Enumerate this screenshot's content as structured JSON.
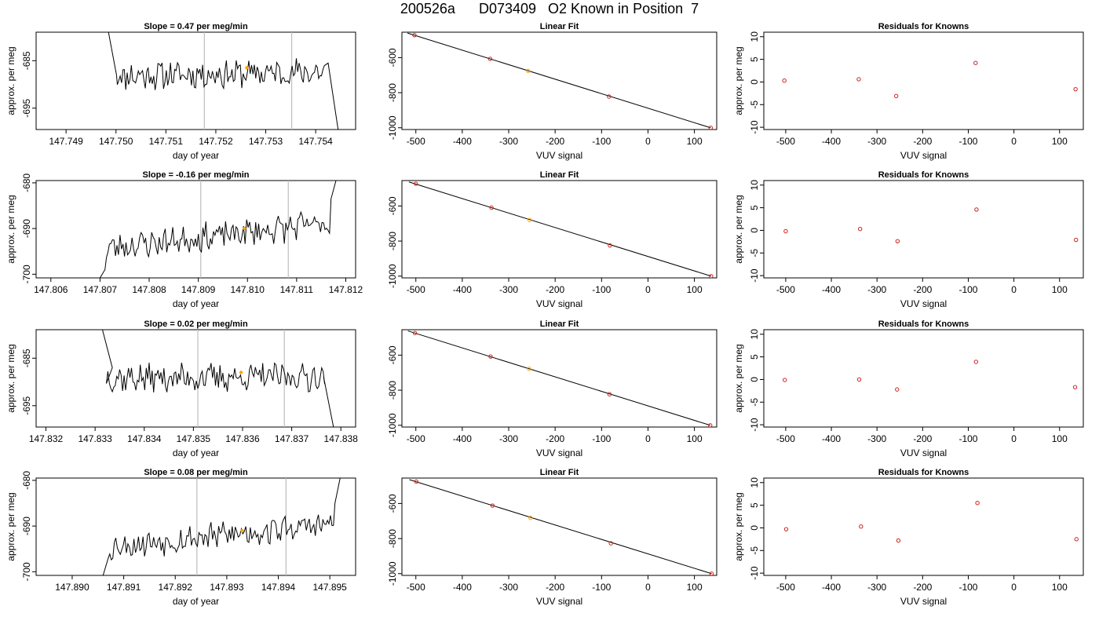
{
  "figure": {
    "title": "200526a      D073409   O2 Known in Position  7"
  },
  "chart_data": [
    {
      "type": "line",
      "panel": "time",
      "row": 0,
      "title": "Slope =  0.47  per meg/min",
      "xlabel": "day of year",
      "ylabel": "approx. per meg",
      "xlim": [
        147.7484,
        147.7548
      ],
      "ylim": [
        -699.5,
        -679.0
      ],
      "xticks": [
        "147.749",
        "147.750",
        "147.751",
        "147.752",
        "147.753",
        "147.754"
      ],
      "xtickvals": [
        147.749,
        147.75,
        147.751,
        147.752,
        147.753,
        147.754
      ],
      "yticks": [
        "-685",
        "-695"
      ],
      "ytickvals": [
        -685,
        -695
      ],
      "vlines": [
        147.75177,
        147.75352
      ],
      "marker": {
        "x": 147.75262,
        "y": -686.5
      },
      "seed": 11,
      "trend": 0.8,
      "entry": {
        "x": 147.74985,
        "y": -679.0
      },
      "exit": {
        "x": 147.75445,
        "y": -699.5
      },
      "t0": 147.75,
      "t1": 147.7542,
      "base": -688.2,
      "knee_in": {
        "x": 147.75001,
        "y": -688
      },
      "knee_out": {
        "x": 147.75425,
        "y": -685.5
      }
    },
    {
      "type": "line",
      "panel": "fit",
      "row": 0,
      "title": "Linear Fit",
      "xlabel": "VUV signal",
      "ylabel": "",
      "xlim": [
        -530,
        148
      ],
      "ylim": [
        -1010,
        -455
      ],
      "xticks": [
        "-500",
        "-400",
        "-300",
        "-200",
        "-100",
        "0",
        "100"
      ],
      "xtickvals": [
        -500,
        -400,
        -300,
        -200,
        -100,
        0,
        100
      ],
      "yticks": [
        "-600",
        "-800",
        "-1000"
      ],
      "ytickvals": [
        -600,
        -800,
        -1000
      ],
      "points": [
        [
          -503,
          -472
        ],
        [
          -340,
          -607
        ],
        [
          -258,
          -676
        ],
        [
          -84,
          -822
        ],
        [
          135,
          -1000
        ]
      ],
      "highlight": [
        -258,
        -676
      ],
      "line": [
        [
          -518,
          -460
        ],
        [
          135,
          -1000
        ]
      ]
    },
    {
      "type": "scatter",
      "panel": "resid",
      "row": 0,
      "title": "Residuals for Knowns",
      "xlabel": "VUV signal",
      "ylabel": "approx. per meg",
      "xlim": [
        -548,
        152
      ],
      "ylim": [
        -10.5,
        11
      ],
      "xticks": [
        "-500",
        "-400",
        "-300",
        "-200",
        "-100",
        "0",
        "100"
      ],
      "xtickvals": [
        -500,
        -400,
        -300,
        -200,
        -100,
        0,
        100
      ],
      "yticks": [
        "10",
        "5",
        "0",
        "-5",
        "-10"
      ],
      "ytickvals": [
        10,
        5,
        0,
        -5,
        -10
      ],
      "points": [
        [
          -503,
          0.3
        ],
        [
          -340,
          0.6
        ],
        [
          -258,
          -3.1
        ],
        [
          -84,
          4.2
        ],
        [
          135,
          -1.6
        ]
      ]
    },
    {
      "type": "line",
      "panel": "time",
      "row": 1,
      "title": "Slope =  -0.16  per meg/min",
      "xlabel": "day of year",
      "ylabel": "approx. per meg",
      "xlim": [
        147.8057,
        147.8122
      ],
      "ylim": [
        -700.8,
        -679.5
      ],
      "xticks": [
        "147.806",
        "147.807",
        "147.808",
        "147.809",
        "147.810",
        "147.811",
        "147.812"
      ],
      "xtickvals": [
        147.806,
        147.807,
        147.808,
        147.809,
        147.81,
        147.811,
        147.812
      ],
      "yticks": [
        "-680",
        "-690",
        "-700"
      ],
      "ytickvals": [
        -680,
        -690,
        -700
      ],
      "vlines": [
        147.80905,
        147.81083
      ],
      "marker": {
        "x": 147.80994,
        "y": -690.0
      },
      "seed": 23,
      "trend": 5.5,
      "entry": {
        "x": 147.807,
        "y": -700.8
      },
      "exit": {
        "x": 147.8118,
        "y": -679.5
      },
      "t0": 147.8071,
      "t1": 147.8117,
      "base": -694.3,
      "knee_in": {
        "x": 147.8071,
        "y": -699
      },
      "knee_out": {
        "x": 147.8117,
        "y": -683.5
      }
    },
    {
      "type": "line",
      "panel": "fit",
      "row": 1,
      "title": "Linear Fit",
      "xlabel": "VUV signal",
      "ylabel": "",
      "xlim": [
        -530,
        148
      ],
      "ylim": [
        -1010,
        -455
      ],
      "xticks": [
        "-500",
        "-400",
        "-300",
        "-200",
        "-100",
        "0",
        "100"
      ],
      "xtickvals": [
        -500,
        -400,
        -300,
        -200,
        -100,
        0,
        100
      ],
      "yticks": [
        "-600",
        "-800",
        "-1000"
      ],
      "ytickvals": [
        -600,
        -800,
        -1000
      ],
      "points": [
        [
          -500,
          -473
        ],
        [
          -337,
          -610
        ],
        [
          -255,
          -680
        ],
        [
          -82,
          -825
        ],
        [
          136,
          -1000
        ]
      ],
      "highlight": [
        -255,
        -680
      ],
      "line": [
        [
          -515,
          -463
        ],
        [
          136,
          -1000
        ]
      ]
    },
    {
      "type": "scatter",
      "panel": "resid",
      "row": 1,
      "title": "Residuals for Knowns",
      "xlabel": "VUV signal",
      "ylabel": "approx. per meg",
      "xlim": [
        -548,
        152
      ],
      "ylim": [
        -10.5,
        11
      ],
      "xticks": [
        "-500",
        "-400",
        "-300",
        "-200",
        "-100",
        "0",
        "100"
      ],
      "xtickvals": [
        -500,
        -400,
        -300,
        -200,
        -100,
        0,
        100
      ],
      "yticks": [
        "10",
        "5",
        "0",
        "-5",
        "-10"
      ],
      "ytickvals": [
        10,
        5,
        0,
        -5,
        -10
      ],
      "points": [
        [
          -500,
          -0.2
        ],
        [
          -337,
          0.3
        ],
        [
          -255,
          -2.4
        ],
        [
          -82,
          4.6
        ],
        [
          136,
          -2.1
        ]
      ]
    },
    {
      "type": "line",
      "panel": "time",
      "row": 2,
      "title": "Slope =  0.02  per meg/min",
      "xlabel": "day of year",
      "ylabel": "approx. per meg",
      "xlim": [
        147.8318,
        147.8383
      ],
      "ylim": [
        -699.5,
        -679.0
      ],
      "xticks": [
        "147.832",
        "147.833",
        "147.834",
        "147.835",
        "147.836",
        "147.837",
        "147.838"
      ],
      "xtickvals": [
        147.832,
        147.833,
        147.834,
        147.835,
        147.836,
        147.837,
        147.838
      ],
      "yticks": [
        "-685",
        "-695"
      ],
      "ytickvals": [
        -685,
        -695
      ],
      "vlines": [
        147.83509,
        147.83685
      ],
      "marker": {
        "x": 147.83597,
        "y": -688.0
      },
      "seed": 37,
      "trend": 0.3,
      "entry": {
        "x": 147.83315,
        "y": -679.0
      },
      "exit": {
        "x": 147.83785,
        "y": -699.5
      },
      "t0": 147.8332,
      "t1": 147.8377,
      "base": -689.2,
      "knee_in": {
        "x": 147.83335,
        "y": -687
      },
      "knee_out": {
        "x": 147.83765,
        "y": -689
      }
    },
    {
      "type": "line",
      "panel": "fit",
      "row": 2,
      "title": "Linear Fit",
      "xlabel": "VUV signal",
      "ylabel": "",
      "xlim": [
        -530,
        148
      ],
      "ylim": [
        -1010,
        -455
      ],
      "xticks": [
        "-500",
        "-400",
        "-300",
        "-200",
        "-100",
        "0",
        "100"
      ],
      "xtickvals": [
        -500,
        -400,
        -300,
        -200,
        -100,
        0,
        100
      ],
      "yticks": [
        "-600",
        "-800",
        "-1000"
      ],
      "ytickvals": [
        -600,
        -800,
        -1000
      ],
      "points": [
        [
          -502,
          -474
        ],
        [
          -339,
          -608
        ],
        [
          -256,
          -678
        ],
        [
          -83,
          -823
        ],
        [
          134,
          -1000
        ]
      ],
      "highlight": [
        -256,
        -678
      ],
      "line": [
        [
          -517,
          -462
        ],
        [
          134,
          -1000
        ]
      ]
    },
    {
      "type": "scatter",
      "panel": "resid",
      "row": 2,
      "title": "Residuals for Knowns",
      "xlabel": "VUV signal",
      "ylabel": "approx. per meg",
      "xlim": [
        -548,
        152
      ],
      "ylim": [
        -10.5,
        11
      ],
      "xticks": [
        "-500",
        "-400",
        "-300",
        "-200",
        "-100",
        "0",
        "100"
      ],
      "xtickvals": [
        -500,
        -400,
        -300,
        -200,
        -100,
        0,
        100
      ],
      "yticks": [
        "10",
        "5",
        "0",
        "-5",
        "-10"
      ],
      "ytickvals": [
        10,
        5,
        0,
        -5,
        -10
      ],
      "points": [
        [
          -502,
          -0.1
        ],
        [
          -339,
          0.0
        ],
        [
          -256,
          -2.2
        ],
        [
          -83,
          3.9
        ],
        [
          134,
          -1.7
        ]
      ]
    },
    {
      "type": "line",
      "panel": "time",
      "row": 3,
      "title": "Slope =  0.08  per meg/min",
      "xlabel": "day of year",
      "ylabel": "approx. per meg",
      "xlim": [
        147.8893,
        147.8955
      ],
      "ylim": [
        -700.8,
        -679.5
      ],
      "xticks": [
        "147.890",
        "147.891",
        "147.892",
        "147.893",
        "147.894",
        "147.895"
      ],
      "xtickvals": [
        147.89,
        147.891,
        147.892,
        147.893,
        147.894,
        147.895
      ],
      "yticks": [
        "-680",
        "-690",
        "-700"
      ],
      "ytickvals": [
        -680,
        -690,
        -700
      ],
      "vlines": [
        147.89242,
        147.89415
      ],
      "marker": {
        "x": 147.8933,
        "y": -691.0
      },
      "seed": 53,
      "trend": 5.0,
      "entry": {
        "x": 147.8906,
        "y": -700.8
      },
      "exit": {
        "x": 147.8952,
        "y": -679.5
      },
      "t0": 147.8907,
      "t1": 147.8951,
      "base": -694.5,
      "knee_in": {
        "x": 147.8907,
        "y": -697
      },
      "knee_out": {
        "x": 147.8951,
        "y": -685
      }
    },
    {
      "type": "line",
      "panel": "fit",
      "row": 3,
      "title": "Linear Fit",
      "xlabel": "VUV signal",
      "ylabel": "",
      "xlim": [
        -530,
        148
      ],
      "ylim": [
        -1010,
        -455
      ],
      "xticks": [
        "-500",
        "-400",
        "-300",
        "-200",
        "-100",
        "0",
        "100"
      ],
      "xtickvals": [
        -500,
        -400,
        -300,
        -200,
        -100,
        0,
        100
      ],
      "yticks": [
        "-600",
        "-800",
        "-1000"
      ],
      "ytickvals": [
        -600,
        -800,
        -1000
      ],
      "points": [
        [
          -499,
          -475
        ],
        [
          -335,
          -612
        ],
        [
          -253,
          -682
        ],
        [
          -80,
          -827
        ],
        [
          137,
          -1000
        ]
      ],
      "highlight": [
        -253,
        -682
      ],
      "line": [
        [
          -514,
          -464
        ],
        [
          137,
          -1000
        ]
      ]
    },
    {
      "type": "scatter",
      "panel": "resid",
      "row": 3,
      "title": "Residuals for Knowns",
      "xlabel": "VUV signal",
      "ylabel": "approx. per meg",
      "xlim": [
        -548,
        152
      ],
      "ylim": [
        -10.5,
        11
      ],
      "xticks": [
        "-500",
        "-400",
        "-300",
        "-200",
        "-100",
        "0",
        "100"
      ],
      "xtickvals": [
        -500,
        -400,
        -300,
        -200,
        -100,
        0,
        100
      ],
      "yticks": [
        "10",
        "5",
        "0",
        "-5",
        "-10"
      ],
      "ytickvals": [
        10,
        5,
        0,
        -5,
        -10
      ],
      "points": [
        [
          -499,
          -0.3
        ],
        [
          -335,
          0.3
        ],
        [
          -253,
          -2.8
        ],
        [
          -80,
          5.5
        ],
        [
          137,
          -2.5
        ]
      ]
    }
  ],
  "colors": {
    "line": "#000000",
    "vline": "#bdbdbd",
    "highlight": "#ffa500",
    "residual_point": "#cc2222",
    "axis": "#000000"
  }
}
